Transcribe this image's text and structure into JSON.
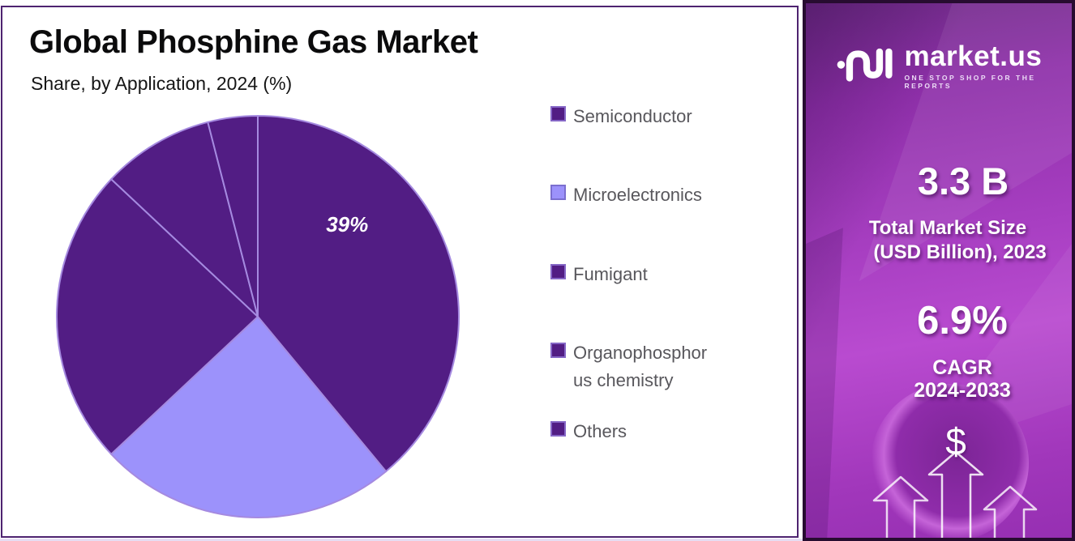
{
  "header": {
    "title": "Global Phosphine Gas Market",
    "subtitle": "Share, by Application, 2024 (%)"
  },
  "chart_data": {
    "type": "pie",
    "title": "Global Phosphine Gas Market",
    "subtitle": "Share, by Application, 2024 (%)",
    "categories": [
      "Semiconductor",
      "Microelectronics",
      "Fumigant",
      "Organophosphorus chemistry",
      "Others"
    ],
    "values": [
      39,
      24,
      24,
      9,
      4
    ],
    "unit": "%",
    "colors": [
      "#521d84",
      "#9c92fb",
      "#521d84",
      "#521d84",
      "#521d84"
    ],
    "slice_border_color": "#a58ae0",
    "swatch_border_colors": [
      "#8566c6",
      "#7b6fd0",
      "#8566c6",
      "#8566c6",
      "#8566c6"
    ],
    "start_angle_deg": 0,
    "direction": "clockwise",
    "legend_position": "right",
    "data_label": {
      "text": "39%",
      "slice": "Semiconductor",
      "angle_deg": 44,
      "radius_frac": 0.64,
      "color": "#ffffff"
    }
  },
  "sidebar": {
    "brand": {
      "name": "market.us",
      "tagline": "ONE STOP SHOP FOR THE REPORTS"
    },
    "market_size": {
      "value": "3.3 B",
      "label_line1": "Total Market Size",
      "label_line2": "(USD Billion), 2023"
    },
    "cagr": {
      "value": "6.9%",
      "label_line1": "CAGR",
      "label_line2": "2024-2033"
    },
    "dollar_symbol": "$",
    "panel_colors": {
      "gradient_top": "#6e2b86",
      "gradient_mid": "#b94bd0",
      "border": "#270c30"
    }
  }
}
